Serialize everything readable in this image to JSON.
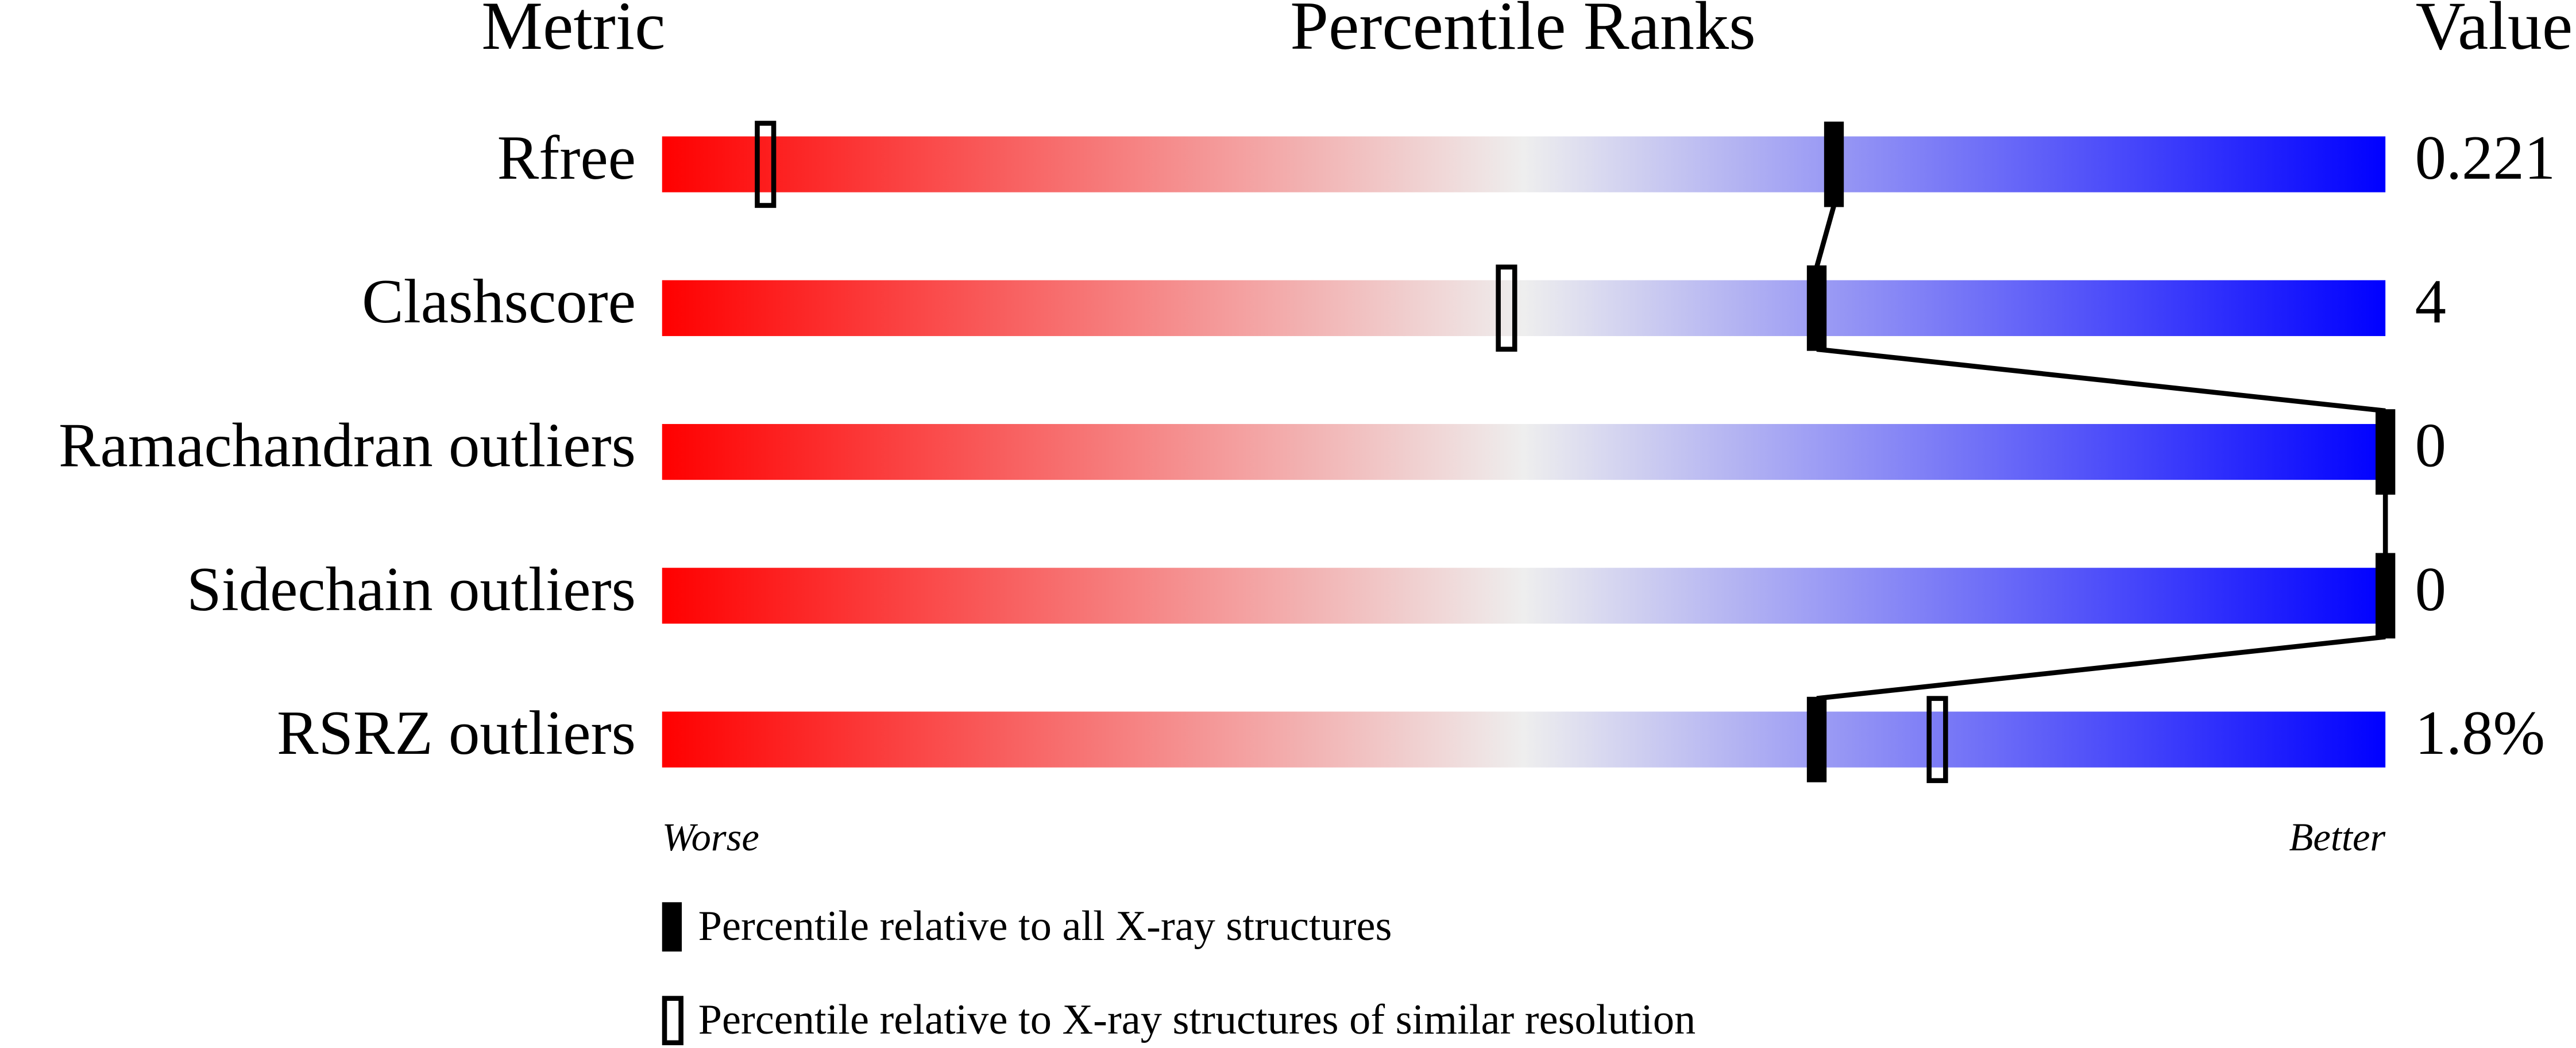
{
  "chart_data": {
    "type": "percentile",
    "metric_header": "Metric",
    "title": "Percentile Ranks",
    "value_header": "Value",
    "categories": [
      "Rfree",
      "Clashscore",
      "Ramachandran outliers",
      "Sidechain outliers",
      "RSRZ outliers"
    ],
    "metric_values": [
      "0.221",
      "4",
      "0",
      "0",
      "1.8%"
    ],
    "xlim": [
      0,
      100
    ],
    "low_label": "Worse",
    "high_label": "Better",
    "gradient": [
      "#ff0000",
      "#eeeeee",
      "#0000ff"
    ],
    "series": [
      {
        "name": "Percentile relative to all X-ray structures",
        "style": "filled",
        "color": "#000000",
        "values": [
          68,
          67,
          100,
          100,
          67
        ]
      },
      {
        "name": "Percentile relative to X-ray structures of similar resolution",
        "style": "hollow",
        "color": "#000000",
        "values": [
          6,
          49,
          null,
          null,
          74
        ]
      }
    ]
  }
}
